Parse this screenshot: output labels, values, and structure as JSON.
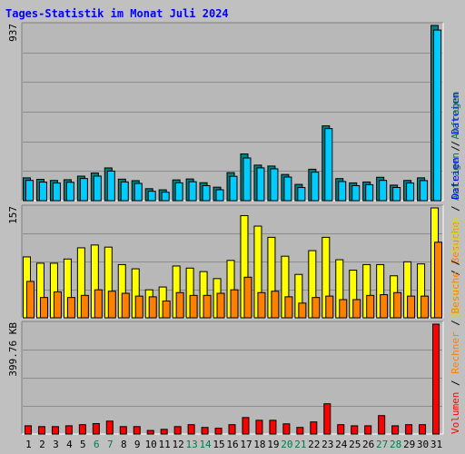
{
  "title": "Tages-Statistik im Monat Juli 2024",
  "colors": {
    "background": "#c0c0c0",
    "plot_bg": "#b8b8b8",
    "title": "#0000ff",
    "weekday_label": "#000000",
    "weekend_label": "#007a4a",
    "anfragen": "#00ccff",
    "anfragen_dark": "#007f7f",
    "dateien": "#00ccff",
    "seiten": "#ffff00",
    "besuche": "#ff8000",
    "rechner": "#ff8000",
    "volumen": "#ff0000"
  },
  "chart_data": [
    {
      "type": "bar",
      "panel": "top",
      "y_tick_label": "937",
      "ylim": [
        0,
        937
      ],
      "categories": [
        "1",
        "2",
        "3",
        "4",
        "5",
        "6",
        "7",
        "8",
        "9",
        "10",
        "11",
        "12",
        "13",
        "14",
        "15",
        "16",
        "17",
        "18",
        "19",
        "20",
        "21",
        "22",
        "23",
        "24",
        "25",
        "26",
        "27",
        "28",
        "29",
        "30",
        "31"
      ],
      "weekend_days": [
        "6",
        "7",
        "13",
        "14",
        "20",
        "21",
        "27",
        "28"
      ],
      "legend_labels": [
        {
          "text": "Anfragen",
          "color": "#007a4a"
        },
        {
          "text": " / ",
          "color": "#000000"
        },
        {
          "text": "Dateien",
          "color": "#0000ff"
        }
      ],
      "series": [
        {
          "name": "Anfragen",
          "values": [
            122,
            114,
            108,
            112,
            131,
            148,
            175,
            115,
            107,
            64,
            58,
            111,
            116,
            96,
            72,
            150,
            250,
            190,
            185,
            140,
            87,
            168,
            400,
            118,
            95,
            100,
            125,
            83,
            108,
            122,
            937
          ]
        },
        {
          "name": "Dateien",
          "values": [
            118,
            109,
            104,
            108,
            128,
            141,
            168,
            110,
            102,
            60,
            55,
            105,
            111,
            90,
            68,
            140,
            238,
            185,
            180,
            136,
            80,
            162,
            395,
            112,
            90,
            95,
            118,
            80,
            104,
            117,
            922
          ]
        }
      ]
    },
    {
      "type": "bar",
      "panel": "middle",
      "y_tick_label": "157",
      "ylim": [
        0,
        157
      ],
      "categories": [
        "1",
        "2",
        "3",
        "4",
        "5",
        "6",
        "7",
        "8",
        "9",
        "10",
        "11",
        "12",
        "13",
        "14",
        "15",
        "16",
        "17",
        "18",
        "19",
        "20",
        "21",
        "22",
        "23",
        "24",
        "25",
        "26",
        "27",
        "28",
        "29",
        "30",
        "31"
      ],
      "legend_labels": [
        {
          "text": "Seiten",
          "color": "#dddd00"
        },
        {
          "text": " / ",
          "color": "#000000"
        },
        {
          "text": "Besuche",
          "color": "#ff8000"
        }
      ],
      "series": [
        {
          "name": "Seiten",
          "values": [
            87,
            78,
            78,
            84,
            100,
            104,
            101,
            76,
            70,
            40,
            44,
            74,
            71,
            66,
            56,
            82,
            146,
            131,
            115,
            88,
            62,
            96,
            115,
            83,
            68,
            76,
            76,
            60,
            80,
            77,
            157
          ]
        },
        {
          "name": "Besuche",
          "values": [
            52,
            29,
            37,
            29,
            32,
            40,
            38,
            35,
            31,
            30,
            24,
            36,
            32,
            32,
            35,
            40,
            58,
            36,
            38,
            30,
            21,
            29,
            31,
            26,
            26,
            32,
            33,
            36,
            31,
            31,
            108
          ]
        }
      ]
    },
    {
      "type": "bar",
      "panel": "bottom",
      "y_tick_label": "399.76 KB",
      "ylim": [
        0,
        399.76
      ],
      "categories": [
        "1",
        "2",
        "3",
        "4",
        "5",
        "6",
        "7",
        "8",
        "9",
        "10",
        "11",
        "12",
        "13",
        "14",
        "15",
        "16",
        "17",
        "18",
        "19",
        "20",
        "21",
        "22",
        "23",
        "24",
        "25",
        "26",
        "27",
        "28",
        "29",
        "30",
        "31"
      ],
      "legend_labels": [
        {
          "text": "Volumen",
          "color": "#ff0000"
        },
        {
          "text": " / ",
          "color": "#000000"
        },
        {
          "text": "Rechner",
          "color": "#ff8000"
        },
        {
          "text": " / ",
          "color": "#000000"
        },
        {
          "text": "Besuche",
          "color": "#ff8000"
        },
        {
          "text": " / ",
          "color": "#000000"
        },
        {
          "text": "Seiten",
          "color": "#dddd00"
        },
        {
          "text": " / ",
          "color": "#000000"
        },
        {
          "text": "Dateien",
          "color": "#0000ff"
        },
        {
          "text": " / ",
          "color": "#000000"
        },
        {
          "text": "Anfragen",
          "color": "#007a4a"
        }
      ],
      "series": [
        {
          "name": "Volumen",
          "values": [
            30,
            27,
            27,
            30,
            34,
            38,
            47,
            27,
            27,
            13,
            17,
            27,
            34,
            24,
            21,
            34,
            60,
            50,
            50,
            37,
            24,
            44,
            110,
            34,
            30,
            30,
            67,
            30,
            34,
            34,
            399.76
          ]
        }
      ]
    }
  ]
}
